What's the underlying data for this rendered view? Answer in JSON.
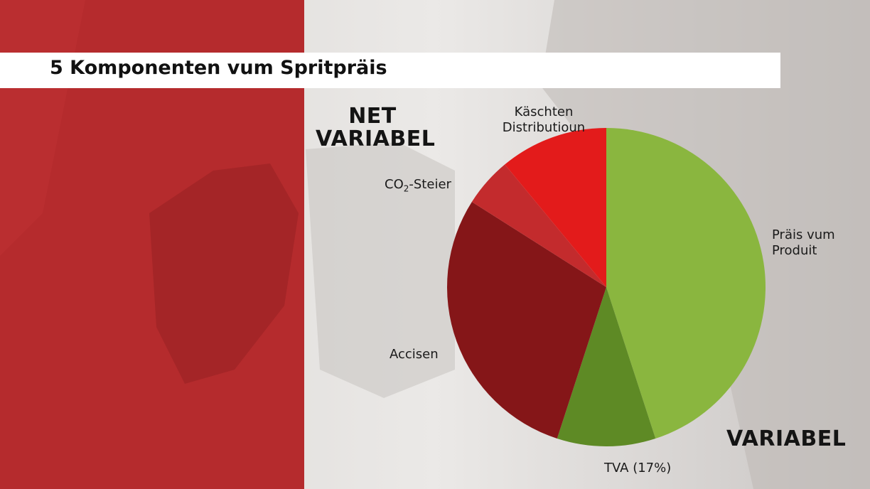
{
  "title": "5 Komponenten vum Spritpräis",
  "groups": {
    "fixed_line1": "NET",
    "fixed_line2": "VARIABEL",
    "variable": "VARIABEL"
  },
  "colors": {
    "left_panel": "#b52b2d",
    "produit": "#8ab63f",
    "tva": "#5e8a25",
    "accisen": "#851618",
    "co2": "#c32b2d",
    "distributioun": "#e31b1b"
  },
  "chart_data": {
    "type": "pie",
    "title": "5 Komponenten vum Spritpräis",
    "slices": [
      {
        "label": "Präis vum Produit",
        "value": 45,
        "color": "#8ab63f"
      },
      {
        "label": "TVA (17%)",
        "value": 10,
        "color": "#5e8a25"
      },
      {
        "label": "Accisen",
        "value": 29,
        "color": "#851618"
      },
      {
        "label": "CO2-Steier",
        "value": 5,
        "color": "#c32b2d"
      },
      {
        "label": "Käschten Distributioun",
        "value": 11,
        "color": "#e31b1b"
      }
    ],
    "labels": {
      "produit_line1": "Präis vum",
      "produit_line2": "Produit",
      "tva": "TVA (17%)",
      "accisen": "Accisen",
      "co2_prefix": "CO",
      "co2_sub": "2",
      "co2_suffix": "-Steier",
      "distributioun_line1": "Käschten",
      "distributioun_line2": "Distributioun"
    }
  }
}
